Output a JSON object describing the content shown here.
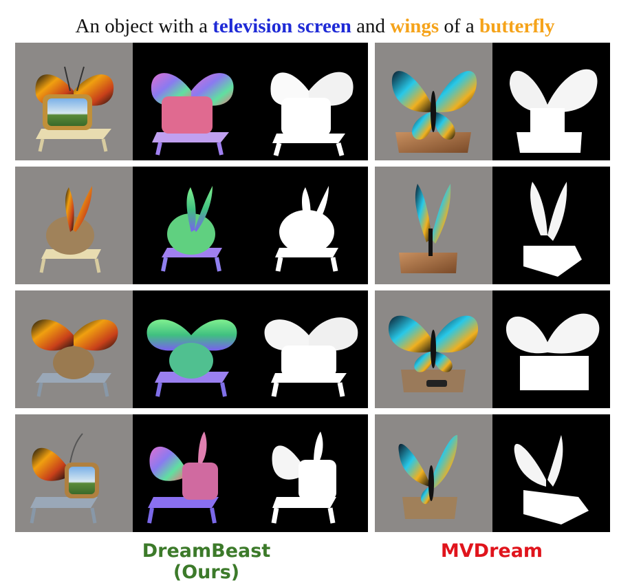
{
  "title": {
    "prefix": "An object with a ",
    "term1": "television screen",
    "mid1": " and ",
    "term2": "wings",
    "mid2": " of a ",
    "term3": "butterfly",
    "colors": {
      "term1": "#1f2bd6",
      "term2": "#f5a31a",
      "term3": "#f5a31a"
    }
  },
  "captions": {
    "left": "DreamBeast (Ours)",
    "right": "MVDream",
    "left_color": "#3c7a2a",
    "right_color": "#e0141c"
  },
  "panels": {
    "left": [
      {
        "views": [
          "rgb-render",
          "normal-map",
          "opacity-mask"
        ]
      },
      {
        "views": [
          "rgb-render",
          "normal-map",
          "opacity-mask"
        ]
      },
      {
        "views": [
          "rgb-render",
          "normal-map",
          "opacity-mask"
        ]
      },
      {
        "views": [
          "rgb-render",
          "normal-map",
          "opacity-mask"
        ]
      }
    ],
    "right": [
      {
        "views": [
          "rgb-render",
          "opacity-mask"
        ]
      },
      {
        "views": [
          "rgb-render",
          "opacity-mask"
        ]
      },
      {
        "views": [
          "rgb-render",
          "opacity-mask"
        ]
      },
      {
        "views": [
          "rgb-render",
          "opacity-mask"
        ]
      }
    ]
  }
}
